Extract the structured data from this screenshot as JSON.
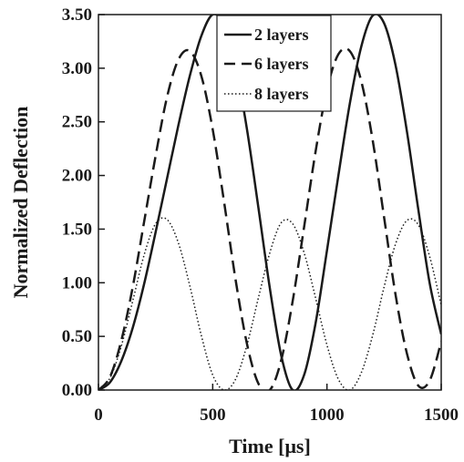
{
  "chart_data": {
    "type": "line",
    "xlabel": "Time [μs]",
    "ylabel": "Normalized Deflection",
    "xlim": [
      0,
      1500
    ],
    "ylim": [
      0,
      3.5
    ],
    "x_ticks": [
      0,
      500,
      1000,
      1500
    ],
    "x_tick_labels": [
      "0",
      "500",
      "1000",
      "1500"
    ],
    "y_ticks": [
      0,
      0.5,
      1.0,
      1.5,
      2.0,
      2.5,
      3.0,
      3.5
    ],
    "y_tick_labels": [
      "0.00",
      "0.50",
      "1.00",
      "1.50",
      "2.00",
      "2.50",
      "3.00",
      "3.50"
    ],
    "grid": false,
    "legend_position": "top-right",
    "series": [
      {
        "name": "2 layers",
        "style": "solid",
        "x": [
          0,
          50,
          100,
          150,
          200,
          250,
          300,
          350,
          400,
          450,
          500,
          550,
          600,
          650,
          700,
          750,
          800,
          850,
          900,
          950,
          1000,
          1050,
          1100,
          1150,
          1200,
          1250,
          1300,
          1350,
          1400,
          1450,
          1500
        ],
        "y": [
          0,
          0.07,
          0.27,
          0.58,
          0.99,
          1.47,
          1.97,
          2.47,
          2.93,
          3.3,
          3.5,
          3.4,
          3.02,
          2.43,
          1.7,
          0.95,
          0.32,
          0.0,
          0.14,
          0.62,
          1.3,
          2.0,
          2.67,
          3.2,
          3.49,
          3.42,
          3.03,
          2.41,
          1.68,
          0.99,
          0.52
        ]
      },
      {
        "name": "6 layers",
        "style": "dashed",
        "x": [
          0,
          50,
          100,
          150,
          200,
          250,
          300,
          350,
          400,
          450,
          500,
          550,
          600,
          650,
          700,
          750,
          800,
          850,
          900,
          950,
          1000,
          1050,
          1100,
          1150,
          1200,
          1250,
          1300,
          1350,
          1400,
          1450,
          1500
        ],
        "y": [
          0,
          0.12,
          0.46,
          0.96,
          1.57,
          2.18,
          2.73,
          3.08,
          3.16,
          2.93,
          2.43,
          1.75,
          1.03,
          0.43,
          0.06,
          0.0,
          0.28,
          0.83,
          1.52,
          2.22,
          2.8,
          3.13,
          3.16,
          2.88,
          2.33,
          1.61,
          0.89,
          0.34,
          0.04,
          0.09,
          0.45
        ]
      },
      {
        "name": "8 layers",
        "style": "dotted",
        "x": [
          0,
          50,
          100,
          150,
          200,
          250,
          300,
          350,
          400,
          450,
          500,
          550,
          600,
          650,
          700,
          750,
          800,
          850,
          900,
          950,
          1000,
          1050,
          1100,
          1150,
          1200,
          1250,
          1300,
          1350,
          1400,
          1450,
          1500
        ],
        "y": [
          0,
          0.11,
          0.41,
          0.83,
          1.26,
          1.55,
          1.59,
          1.37,
          0.97,
          0.51,
          0.14,
          0.0,
          0.1,
          0.42,
          0.86,
          1.28,
          1.56,
          1.55,
          1.28,
          0.86,
          0.42,
          0.1,
          0.0,
          0.16,
          0.51,
          0.96,
          1.36,
          1.58,
          1.54,
          1.24,
          0.79
        ]
      }
    ]
  }
}
